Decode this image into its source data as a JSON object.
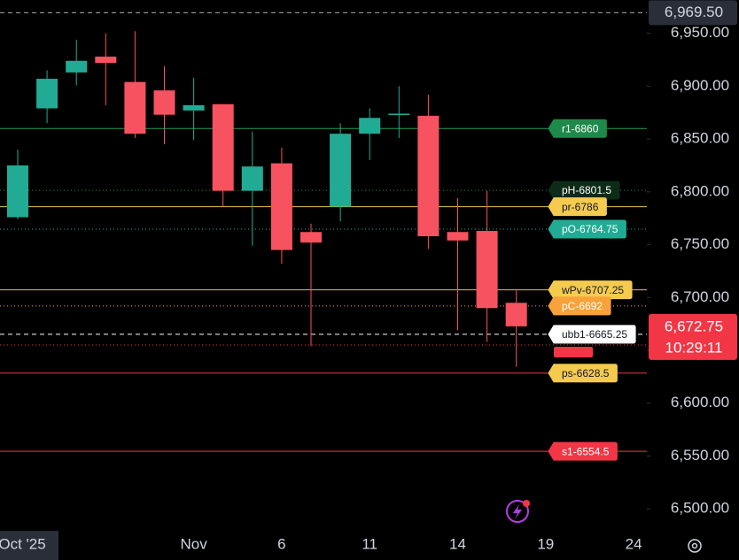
{
  "chart_data": {
    "type": "candlestick",
    "categories": [
      "Oct '25",
      null,
      null,
      null,
      null,
      null,
      "Nov",
      null,
      null,
      "6",
      null,
      null,
      "11",
      null,
      null,
      "14",
      null,
      null,
      "19",
      null,
      null,
      "24"
    ],
    "open": [
      6776,
      6879,
      6913,
      6928,
      6904,
      6896,
      6877,
      6883,
      6801,
      6827,
      6762,
      6786,
      6855,
      6873,
      6872,
      6762,
      6763,
      6695,
      null,
      null,
      null,
      null
    ],
    "high": [
      6840,
      6915,
      6944,
      6950,
      6952,
      6919,
      6908,
      6883,
      6857,
      6842,
      6770,
      6865,
      6879,
      6900,
      6892,
      6794,
      6801,
      6708,
      null,
      null,
      null,
      null
    ],
    "low": [
      6774,
      6865,
      6901,
      6882,
      6851,
      6845,
      6849,
      6786,
      6749,
      6732,
      6654,
      6772,
      6830,
      6851,
      6746,
      6669,
      6658,
      6634.5,
      null,
      null,
      null,
      null
    ],
    "close": [
      6825,
      6907,
      6924,
      6922,
      6855,
      6873,
      6882,
      6801,
      6824,
      6745,
      6752,
      6855,
      6870,
      6874,
      6758,
      6754,
      6690,
      6672.75,
      null,
      null,
      null,
      null
    ],
    "up_color": "#22ab94",
    "down_color": "#f7525f",
    "ylim": [
      6479.25,
      6981.55
    ],
    "yticks": [
      {
        "value": 6500,
        "label": "6,500.00"
      },
      {
        "value": 6550,
        "label": "6,550.00"
      },
      {
        "value": 6600,
        "label": "6,600.00"
      },
      {
        "value": 6650,
        "label": "6,650.00"
      },
      {
        "value": 6700,
        "label": "6,700.00"
      },
      {
        "value": 6750,
        "label": "6,750.00"
      },
      {
        "value": 6800,
        "label": "6,800.00"
      },
      {
        "value": 6850,
        "label": "6,850.00"
      },
      {
        "value": 6900,
        "label": "6,900.00"
      },
      {
        "value": 6950,
        "label": "6,950.00"
      }
    ],
    "levels": [
      {
        "label": "r1-6860",
        "value": 6860,
        "line_color": "#1e9e55",
        "label_color": "#1e8a4a",
        "text_color": "#ffffff",
        "style": "solid"
      },
      {
        "label": "pH-6801.5",
        "value": 6801.5,
        "line_color": "#1e8a4a",
        "label_color": "#0d2b16",
        "text_color": "#ffffff",
        "style": "dotted"
      },
      {
        "label": "pr-6786",
        "value": 6786,
        "line_color": "#e3c04a",
        "label_color": "#f5cb4f",
        "text_color": "#131722",
        "style": "solid"
      },
      {
        "label": "pO-6764.75",
        "value": 6764.75,
        "line_color": "#22ab94",
        "label_color": "#22ab94",
        "text_color": "#ffffff",
        "style": "dotted"
      },
      {
        "label": "wPv-6707.25",
        "value": 6707.25,
        "line_color": "#e3c04a",
        "label_color": "#f5cb4f",
        "text_color": "#131722",
        "style": "solid"
      },
      {
        "label": "pC-6692",
        "value": 6692,
        "line_color": "#f7a23a",
        "label_color": "#f7a23a",
        "text_color": "#ffffff",
        "style": "dotted"
      },
      {
        "label": "ubb1-6665.25",
        "value": 6665.25,
        "line_color": "#ffffff",
        "label_color": "#ffffff",
        "text_color": "#131722",
        "style": "dashed"
      },
      {
        "label": "ps-6628.5",
        "value": 6628.5,
        "line_color": "#f23645",
        "label_color": "#f5cb4f",
        "text_color": "#131722",
        "style": "solid"
      },
      {
        "label": "s1-6554.5",
        "value": 6554.5,
        "line_color": "#f23645",
        "label_color": "#f23645",
        "text_color": "#ffffff",
        "style": "solid"
      }
    ],
    "current_price": {
      "value": 6672.75,
      "label": "6,672.75",
      "countdown": "10:29:11",
      "color": "#f23645"
    },
    "high_marker": {
      "value": 6969.5,
      "label": "6,969.50"
    }
  }
}
